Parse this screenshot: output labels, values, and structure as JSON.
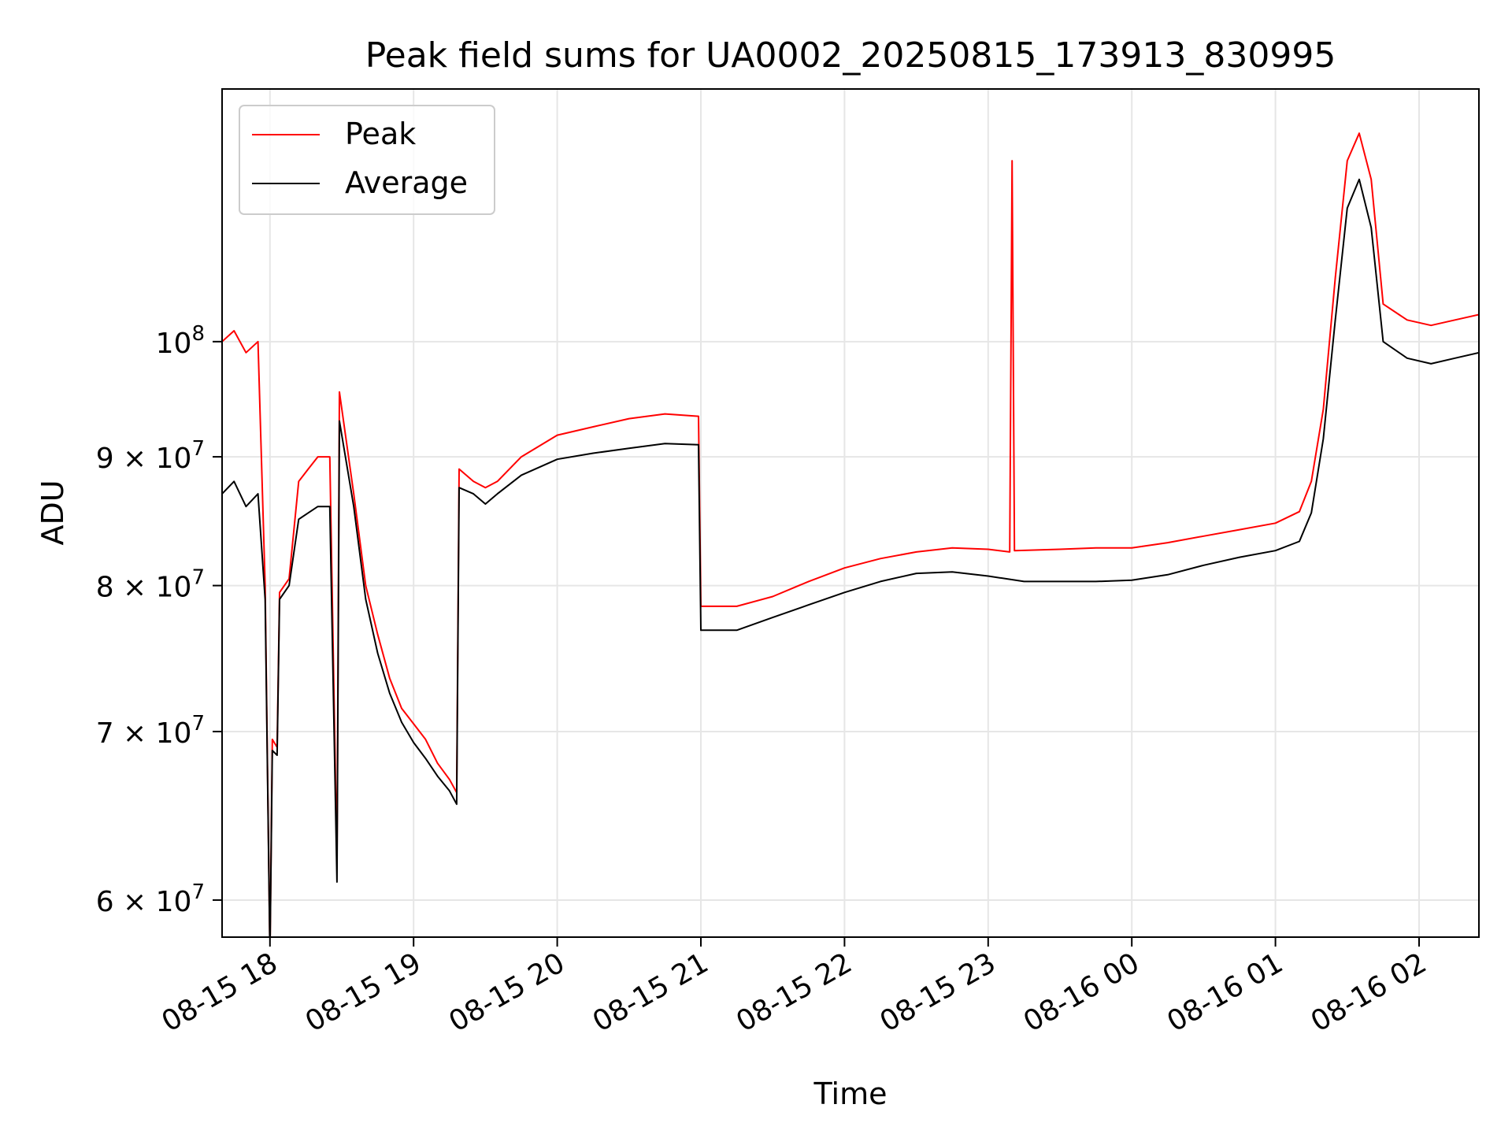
{
  "chart_data": {
    "type": "line",
    "title": "Peak field sums for UA0002_20250815_173913_830995",
    "xlabel": "Time",
    "ylabel": "ADU",
    "y_scale": "log",
    "x_range": [
      "2025-08-15 17:40",
      "2025-08-16 02:25"
    ],
    "ylim": [
      58000000,
      126000000
    ],
    "grid": true,
    "legend_position": "top-left",
    "x_ticks": [
      {
        "time": "2025-08-15 18:00",
        "label": "08-15 18"
      },
      {
        "time": "2025-08-15 19:00",
        "label": "08-15 19"
      },
      {
        "time": "2025-08-15 20:00",
        "label": "08-15 20"
      },
      {
        "time": "2025-08-15 21:00",
        "label": "08-15 21"
      },
      {
        "time": "2025-08-15 22:00",
        "label": "08-15 22"
      },
      {
        "time": "2025-08-15 23:00",
        "label": "08-15 23"
      },
      {
        "time": "2025-08-16 00:00",
        "label": "08-16 00"
      },
      {
        "time": "2025-08-16 01:00",
        "label": "08-16 01"
      },
      {
        "time": "2025-08-16 02:00",
        "label": "08-16 02"
      }
    ],
    "y_ticks": [
      {
        "value": 60000000,
        "mantissa": "6",
        "base": "10",
        "exp": "7"
      },
      {
        "value": 70000000,
        "mantissa": "7",
        "base": "10",
        "exp": "7"
      },
      {
        "value": 80000000,
        "mantissa": "8",
        "base": "10",
        "exp": "7"
      },
      {
        "value": 90000000,
        "mantissa": "9",
        "base": "10",
        "exp": "7"
      },
      {
        "value": 100000000,
        "mantissa": "",
        "base": "10",
        "exp": "8"
      }
    ],
    "series": [
      {
        "name": "Peak",
        "color": "#ff0000",
        "points": [
          [
            "2025-08-15 17:40",
            100000000
          ],
          [
            "2025-08-15 17:45",
            101000000
          ],
          [
            "2025-08-15 17:50",
            99000000
          ],
          [
            "2025-08-15 17:55",
            100000000
          ],
          [
            "2025-08-15 17:58",
            80000000
          ],
          [
            "2025-08-15 18:00",
            57000000
          ],
          [
            "2025-08-15 18:01",
            69500000
          ],
          [
            "2025-08-15 18:03",
            69000000
          ],
          [
            "2025-08-15 18:04",
            79500000
          ],
          [
            "2025-08-15 18:08",
            80500000
          ],
          [
            "2025-08-15 18:12",
            88000000
          ],
          [
            "2025-08-15 18:16",
            89000000
          ],
          [
            "2025-08-15 18:20",
            90000000
          ],
          [
            "2025-08-15 18:25",
            90000000
          ],
          [
            "2025-08-15 18:28",
            62000000
          ],
          [
            "2025-08-15 18:29",
            95500000
          ],
          [
            "2025-08-15 18:35",
            87000000
          ],
          [
            "2025-08-15 18:40",
            80000000
          ],
          [
            "2025-08-15 18:45",
            76500000
          ],
          [
            "2025-08-15 18:50",
            73500000
          ],
          [
            "2025-08-15 18:55",
            71500000
          ],
          [
            "2025-08-15 19:00",
            70500000
          ],
          [
            "2025-08-15 19:05",
            69500000
          ],
          [
            "2025-08-15 19:10",
            68000000
          ],
          [
            "2025-08-15 19:15",
            67000000
          ],
          [
            "2025-08-15 19:18",
            66200000
          ],
          [
            "2025-08-15 19:19",
            89000000
          ],
          [
            "2025-08-15 19:25",
            88000000
          ],
          [
            "2025-08-15 19:30",
            87500000
          ],
          [
            "2025-08-15 19:35",
            88000000
          ],
          [
            "2025-08-15 19:45",
            90000000
          ],
          [
            "2025-08-15 20:00",
            91800000
          ],
          [
            "2025-08-15 20:15",
            92500000
          ],
          [
            "2025-08-15 20:30",
            93200000
          ],
          [
            "2025-08-15 20:45",
            93600000
          ],
          [
            "2025-08-15 20:59",
            93400000
          ],
          [
            "2025-08-15 21:00",
            78500000
          ],
          [
            "2025-08-15 21:15",
            78500000
          ],
          [
            "2025-08-15 21:30",
            79200000
          ],
          [
            "2025-08-15 21:45",
            80300000
          ],
          [
            "2025-08-15 22:00",
            81300000
          ],
          [
            "2025-08-15 22:15",
            82000000
          ],
          [
            "2025-08-15 22:30",
            82500000
          ],
          [
            "2025-08-15 22:45",
            82800000
          ],
          [
            "2025-08-15 23:00",
            82700000
          ],
          [
            "2025-08-15 23:09",
            82500000
          ],
          [
            "2025-08-15 23:10",
            118000000
          ],
          [
            "2025-08-15 23:11",
            82600000
          ],
          [
            "2025-08-15 23:30",
            82700000
          ],
          [
            "2025-08-15 23:45",
            82800000
          ],
          [
            "2025-08-16 00:00",
            82800000
          ],
          [
            "2025-08-16 00:15",
            83200000
          ],
          [
            "2025-08-16 00:30",
            83700000
          ],
          [
            "2025-08-16 00:45",
            84200000
          ],
          [
            "2025-08-16 01:00",
            84700000
          ],
          [
            "2025-08-16 01:10",
            85600000
          ],
          [
            "2025-08-16 01:15",
            88000000
          ],
          [
            "2025-08-16 01:20",
            94000000
          ],
          [
            "2025-08-16 01:25",
            106000000
          ],
          [
            "2025-08-16 01:30",
            118000000
          ],
          [
            "2025-08-16 01:35",
            121000000
          ],
          [
            "2025-08-16 01:40",
            116000000
          ],
          [
            "2025-08-16 01:45",
            103500000
          ],
          [
            "2025-08-16 01:55",
            102000000
          ],
          [
            "2025-08-16 02:05",
            101500000
          ],
          [
            "2025-08-16 02:15",
            102000000
          ],
          [
            "2025-08-16 02:25",
            102500000
          ]
        ]
      },
      {
        "name": "Average",
        "color": "#000000",
        "points": [
          [
            "2025-08-15 17:40",
            87000000
          ],
          [
            "2025-08-15 17:45",
            88000000
          ],
          [
            "2025-08-15 17:50",
            86000000
          ],
          [
            "2025-08-15 17:55",
            87000000
          ],
          [
            "2025-08-15 17:58",
            79000000
          ],
          [
            "2025-08-15 18:00",
            57000000
          ],
          [
            "2025-08-15 18:01",
            68800000
          ],
          [
            "2025-08-15 18:03",
            68500000
          ],
          [
            "2025-08-15 18:04",
            79000000
          ],
          [
            "2025-08-15 18:08",
            80000000
          ],
          [
            "2025-08-15 18:12",
            85000000
          ],
          [
            "2025-08-15 18:16",
            85500000
          ],
          [
            "2025-08-15 18:20",
            86000000
          ],
          [
            "2025-08-15 18:25",
            86000000
          ],
          [
            "2025-08-15 18:28",
            61000000
          ],
          [
            "2025-08-15 18:29",
            93000000
          ],
          [
            "2025-08-15 18:35",
            86000000
          ],
          [
            "2025-08-15 18:40",
            79000000
          ],
          [
            "2025-08-15 18:45",
            75200000
          ],
          [
            "2025-08-15 18:50",
            72500000
          ],
          [
            "2025-08-15 18:55",
            70600000
          ],
          [
            "2025-08-15 19:00",
            69300000
          ],
          [
            "2025-08-15 19:05",
            68300000
          ],
          [
            "2025-08-15 19:10",
            67200000
          ],
          [
            "2025-08-15 19:15",
            66300000
          ],
          [
            "2025-08-15 19:18",
            65500000
          ],
          [
            "2025-08-15 19:19",
            87500000
          ],
          [
            "2025-08-15 19:25",
            87000000
          ],
          [
            "2025-08-15 19:30",
            86200000
          ],
          [
            "2025-08-15 19:35",
            87000000
          ],
          [
            "2025-08-15 19:45",
            88500000
          ],
          [
            "2025-08-15 20:00",
            89800000
          ],
          [
            "2025-08-15 20:15",
            90300000
          ],
          [
            "2025-08-15 20:30",
            90700000
          ],
          [
            "2025-08-15 20:45",
            91100000
          ],
          [
            "2025-08-15 20:59",
            91000000
          ],
          [
            "2025-08-15 21:00",
            76800000
          ],
          [
            "2025-08-15 21:15",
            76800000
          ],
          [
            "2025-08-15 21:30",
            77700000
          ],
          [
            "2025-08-15 21:45",
            78600000
          ],
          [
            "2025-08-15 22:00",
            79500000
          ],
          [
            "2025-08-15 22:15",
            80300000
          ],
          [
            "2025-08-15 22:30",
            80900000
          ],
          [
            "2025-08-15 22:45",
            81000000
          ],
          [
            "2025-08-15 23:00",
            80700000
          ],
          [
            "2025-08-15 23:15",
            80300000
          ],
          [
            "2025-08-15 23:30",
            80300000
          ],
          [
            "2025-08-15 23:45",
            80300000
          ],
          [
            "2025-08-16 00:00",
            80400000
          ],
          [
            "2025-08-16 00:15",
            80800000
          ],
          [
            "2025-08-16 00:30",
            81500000
          ],
          [
            "2025-08-16 00:45",
            82100000
          ],
          [
            "2025-08-16 01:00",
            82600000
          ],
          [
            "2025-08-16 01:10",
            83300000
          ],
          [
            "2025-08-16 01:15",
            85500000
          ],
          [
            "2025-08-16 01:20",
            91500000
          ],
          [
            "2025-08-16 01:25",
            102000000
          ],
          [
            "2025-08-16 01:30",
            113000000
          ],
          [
            "2025-08-16 01:35",
            116000000
          ],
          [
            "2025-08-16 01:40",
            111000000
          ],
          [
            "2025-08-16 01:45",
            100000000
          ],
          [
            "2025-08-16 01:55",
            98500000
          ],
          [
            "2025-08-16 02:05",
            98000000
          ],
          [
            "2025-08-16 02:15",
            98500000
          ],
          [
            "2025-08-16 02:25",
            99000000
          ]
        ]
      }
    ]
  }
}
